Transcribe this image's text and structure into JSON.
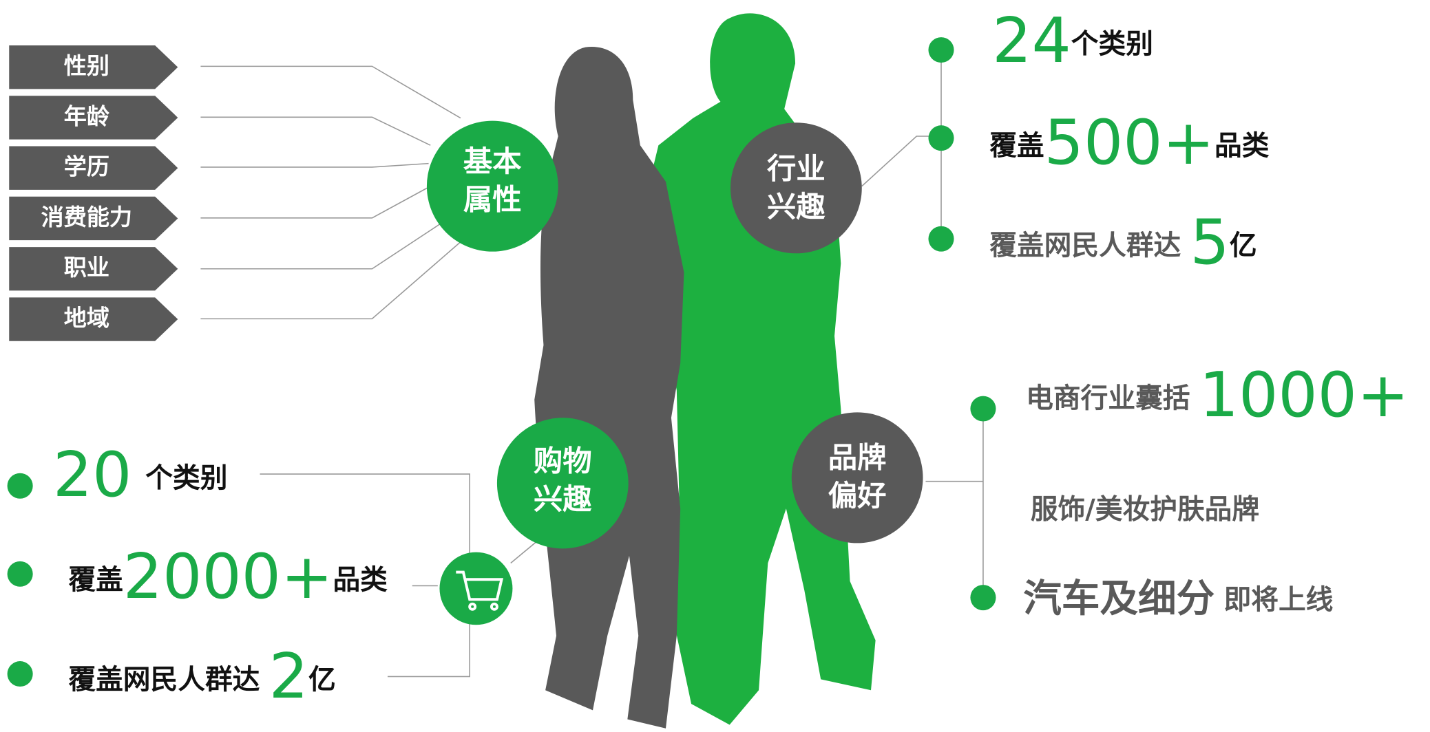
{
  "basic": {
    "label": [
      "基本",
      "属性"
    ],
    "tags": [
      "性别",
      "年龄",
      "学历",
      "消费能力",
      "职业",
      "地域"
    ]
  },
  "industry": {
    "label": [
      "行业",
      "兴趣"
    ],
    "lines": [
      [
        "24",
        "个类别"
      ],
      [
        "覆盖",
        "500+",
        "品类"
      ],
      [
        "覆盖网民人群达",
        "5",
        "亿"
      ]
    ]
  },
  "shopping": {
    "label": [
      "购物",
      "兴趣"
    ],
    "lines": [
      [
        "20",
        "个类别"
      ],
      [
        "覆盖",
        "2000+",
        "品类"
      ],
      [
        "覆盖网民人群达",
        "2",
        "亿"
      ]
    ]
  },
  "brand": {
    "label": [
      "品牌",
      "偏好"
    ],
    "lines": [
      [
        "电商行业囊括",
        "1000+"
      ],
      [
        "服饰/美妆护肤品牌"
      ],
      [
        "汽车及细分",
        "即将上线"
      ]
    ]
  }
}
